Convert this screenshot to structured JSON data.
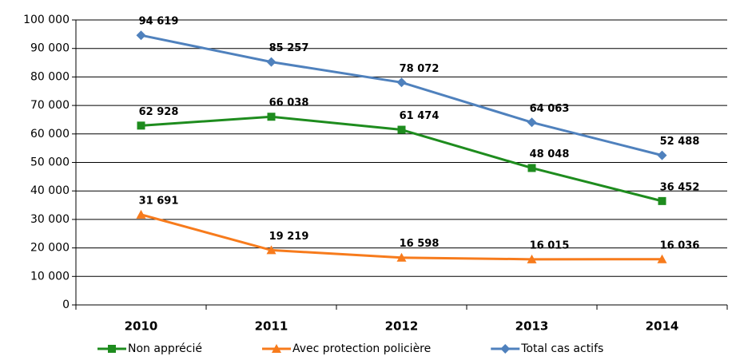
{
  "chart_data": {
    "type": "line",
    "categories": [
      "2010",
      "2011",
      "2012",
      "2013",
      "2014"
    ],
    "series": [
      {
        "name": "Non apprécié",
        "color": "#1e8c1e",
        "marker": "square",
        "values": [
          62928,
          66038,
          61474,
          48048,
          36452
        ],
        "value_labels": [
          "62 928",
          "66 038",
          "61 474",
          "48 048",
          "36 452"
        ]
      },
      {
        "name": "Avec protection policière",
        "color": "#f77b1c",
        "marker": "triangle",
        "values": [
          31691,
          19219,
          16598,
          16015,
          16036
        ],
        "value_labels": [
          "31 691",
          "19 219",
          "16 598",
          "16 015",
          "16 036"
        ]
      },
      {
        "name": "Total cas actifs",
        "color": "#4f81bd",
        "marker": "diamond",
        "values": [
          94619,
          85257,
          78072,
          64063,
          52488
        ],
        "value_labels": [
          "94 619",
          "85 257",
          "78 072",
          "64 063",
          "52 488"
        ]
      }
    ],
    "ylim": [
      0,
      100000
    ],
    "yticks": [
      0,
      {
        "value": 10000,
        "label": "10 000"
      },
      {
        "value": 20000,
        "label": "20 000"
      },
      {
        "value": 30000,
        "label": "30 000"
      },
      {
        "value": 40000,
        "label": "40 000"
      },
      {
        "value": 50000,
        "label": "50 000"
      },
      {
        "value": 60000,
        "label": "60 000"
      },
      {
        "value": 70000,
        "label": "70 000"
      },
      {
        "value": 80000,
        "label": "80 000"
      },
      {
        "value": 90000,
        "label": "90 000"
      },
      {
        "value": 100000,
        "label": "100 000"
      }
    ],
    "grid": true,
    "legend": "bottom"
  }
}
